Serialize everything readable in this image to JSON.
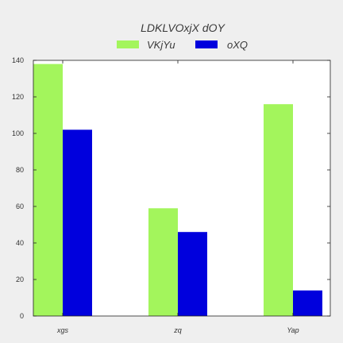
{
  "chart_data": {
    "type": "bar",
    "title": "LDKLVOxjX dOY",
    "xlabel": "",
    "ylabel": "",
    "categories": [
      "xgs",
      "zq",
      "Yap"
    ],
    "series": [
      {
        "name": "VKjYu",
        "color": "#a3f55c",
        "values": [
          138,
          59,
          116
        ]
      },
      {
        "name": "oXQ",
        "color": "#0000dd",
        "values": [
          102,
          46,
          14
        ]
      }
    ],
    "ylim": [
      0,
      140
    ],
    "yticks": [
      "0",
      "20",
      "40",
      "60",
      "80",
      "100",
      "120",
      "140"
    ],
    "grid": false,
    "legend_position": "top-center",
    "background_color": "#efefef",
    "plot_background_color": "#ffffff"
  }
}
